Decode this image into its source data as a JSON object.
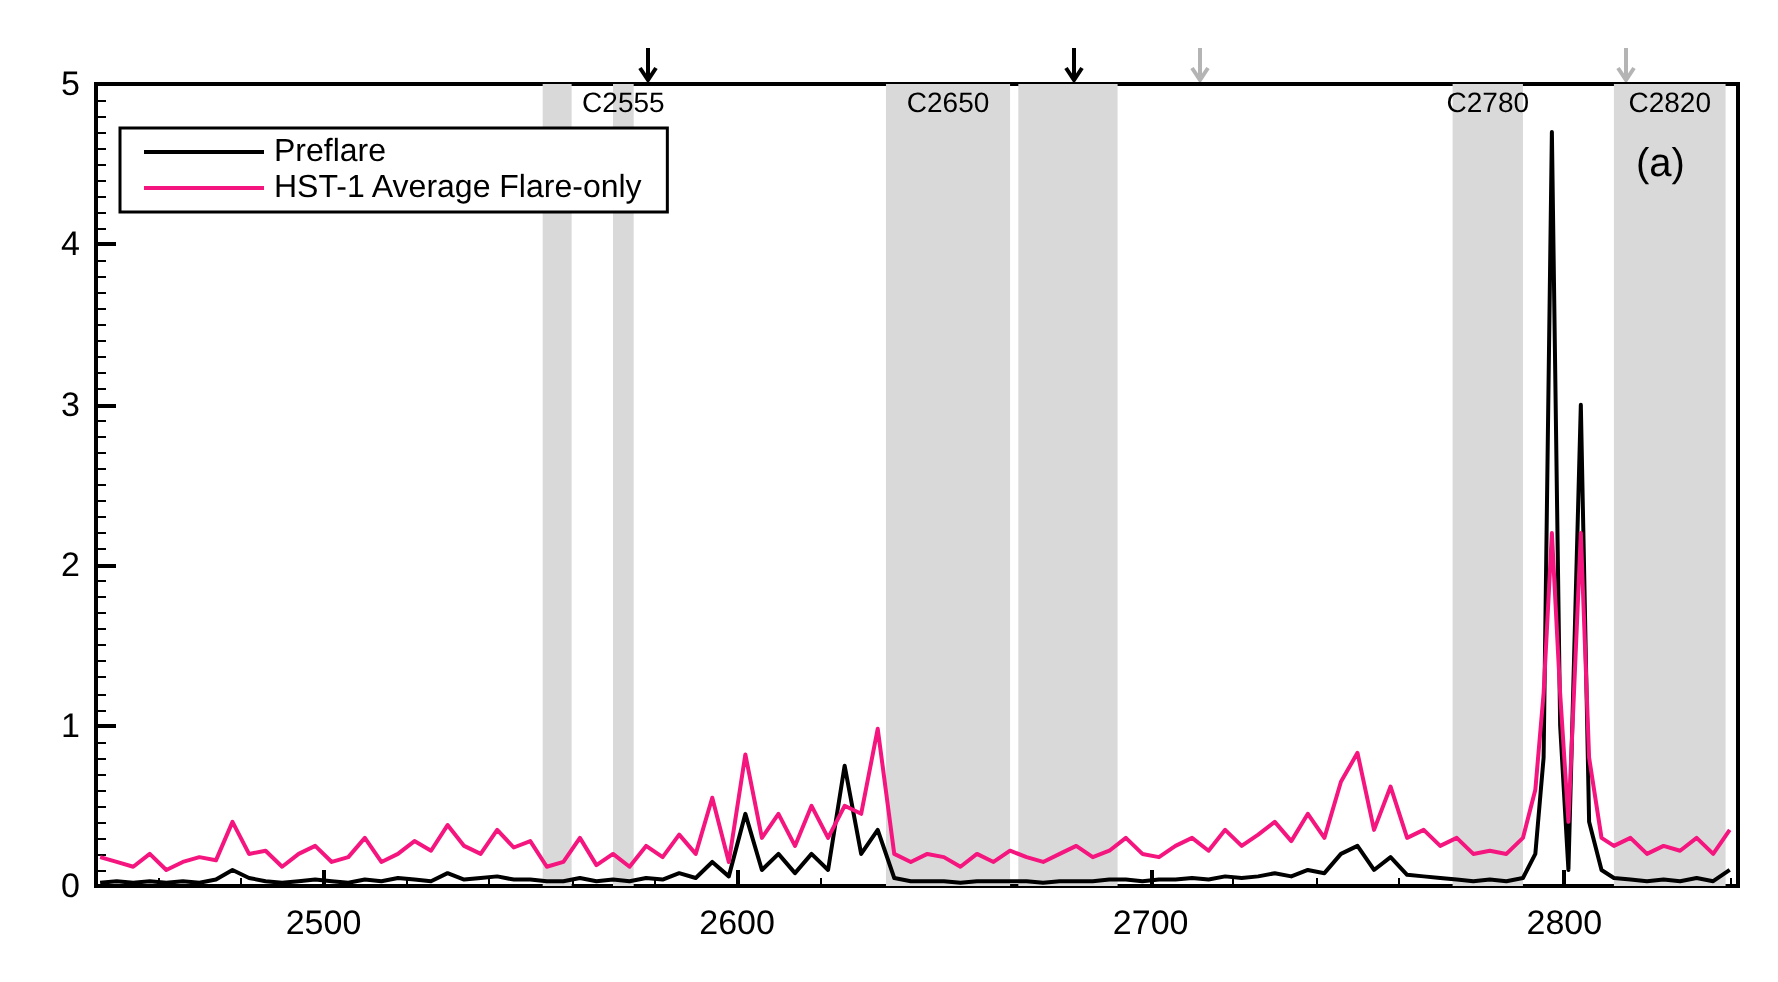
{
  "chart_data": {
    "type": "line",
    "x": [
      2446,
      2450,
      2454,
      2458,
      2462,
      2466,
      2470,
      2474,
      2478,
      2482,
      2486,
      2490,
      2494,
      2498,
      2502,
      2506,
      2510,
      2514,
      2518,
      2522,
      2526,
      2530,
      2534,
      2538,
      2542,
      2546,
      2550,
      2554,
      2558,
      2562,
      2566,
      2570,
      2574,
      2578,
      2582,
      2586,
      2590,
      2594,
      2598,
      2602,
      2606,
      2610,
      2614,
      2618,
      2622,
      2626,
      2630,
      2634,
      2638,
      2642,
      2646,
      2650,
      2654,
      2658,
      2662,
      2666,
      2670,
      2674,
      2678,
      2682,
      2686,
      2690,
      2694,
      2698,
      2702,
      2706,
      2710,
      2714,
      2718,
      2722,
      2726,
      2730,
      2734,
      2738,
      2742,
      2746,
      2750,
      2754,
      2758,
      2762,
      2766,
      2770,
      2774,
      2778,
      2782,
      2786,
      2790,
      2793,
      2795,
      2797,
      2799,
      2801,
      2804,
      2806,
      2809,
      2812,
      2816,
      2820,
      2824,
      2828,
      2832,
      2836,
      2840
    ],
    "series": [
      {
        "name": "Preflare",
        "color": "#000000",
        "values": [
          0.02,
          0.03,
          0.02,
          0.03,
          0.02,
          0.03,
          0.02,
          0.04,
          0.1,
          0.05,
          0.03,
          0.02,
          0.03,
          0.04,
          0.03,
          0.02,
          0.04,
          0.03,
          0.05,
          0.04,
          0.03,
          0.08,
          0.04,
          0.05,
          0.06,
          0.04,
          0.04,
          0.03,
          0.03,
          0.05,
          0.03,
          0.04,
          0.03,
          0.05,
          0.04,
          0.08,
          0.05,
          0.15,
          0.06,
          0.45,
          0.1,
          0.2,
          0.08,
          0.2,
          0.1,
          0.75,
          0.2,
          0.35,
          0.05,
          0.03,
          0.03,
          0.03,
          0.02,
          0.03,
          0.03,
          0.03,
          0.03,
          0.02,
          0.03,
          0.03,
          0.03,
          0.04,
          0.04,
          0.03,
          0.04,
          0.04,
          0.05,
          0.04,
          0.06,
          0.05,
          0.06,
          0.08,
          0.06,
          0.1,
          0.08,
          0.2,
          0.25,
          0.1,
          0.18,
          0.07,
          0.06,
          0.05,
          0.04,
          0.03,
          0.04,
          0.03,
          0.05,
          0.2,
          0.8,
          4.7,
          1.0,
          0.1,
          3.0,
          0.4,
          0.1,
          0.05,
          0.04,
          0.03,
          0.04,
          0.03,
          0.05,
          0.03,
          0.1
        ]
      },
      {
        "name": "HST-1 Average Flare-only",
        "color": "#f5157f",
        "values": [
          0.18,
          0.15,
          0.12,
          0.2,
          0.1,
          0.15,
          0.18,
          0.16,
          0.4,
          0.2,
          0.22,
          0.12,
          0.2,
          0.25,
          0.15,
          0.18,
          0.3,
          0.15,
          0.2,
          0.28,
          0.22,
          0.38,
          0.25,
          0.2,
          0.35,
          0.24,
          0.28,
          0.12,
          0.15,
          0.3,
          0.13,
          0.2,
          0.12,
          0.25,
          0.18,
          0.32,
          0.2,
          0.55,
          0.15,
          0.82,
          0.3,
          0.45,
          0.25,
          0.5,
          0.3,
          0.5,
          0.45,
          0.98,
          0.2,
          0.15,
          0.2,
          0.18,
          0.12,
          0.2,
          0.15,
          0.22,
          0.18,
          0.15,
          0.2,
          0.25,
          0.18,
          0.22,
          0.3,
          0.2,
          0.18,
          0.25,
          0.3,
          0.22,
          0.35,
          0.25,
          0.32,
          0.4,
          0.28,
          0.45,
          0.3,
          0.65,
          0.83,
          0.35,
          0.62,
          0.3,
          0.35,
          0.25,
          0.3,
          0.2,
          0.22,
          0.2,
          0.3,
          0.6,
          1.2,
          2.2,
          1.2,
          0.4,
          2.2,
          0.8,
          0.3,
          0.25,
          0.3,
          0.2,
          0.25,
          0.22,
          0.3,
          0.2,
          0.35
        ]
      }
    ],
    "xlim": [
      2445,
      2842
    ],
    "xticks": [
      2500,
      2600,
      2700,
      2800
    ],
    "ylim": [
      0,
      5
    ],
    "yticks": [
      0,
      1,
      2,
      3,
      4,
      5
    ],
    "grid": false,
    "legend": "top left",
    "line_style": "solid",
    "marker": "none",
    "bands": [
      {
        "axis": "x",
        "from": 2553,
        "to": 2560,
        "label": null,
        "color": "#d9d9d9"
      },
      {
        "axis": "x",
        "from": 2570,
        "to": 2575,
        "label": "C2555",
        "color": "#d9d9d9"
      },
      {
        "axis": "x",
        "from": 2636,
        "to": 2666,
        "label": "C2650",
        "color": "#d9d9d9"
      },
      {
        "axis": "x",
        "from": 2668,
        "to": 2692,
        "label": null,
        "color": "#d9d9d9"
      },
      {
        "axis": "x",
        "from": 2773,
        "to": 2790,
        "label": "C2780",
        "color": "#d9d9d9"
      },
      {
        "axis": "x",
        "from": 2812,
        "to": 2839,
        "label": "C2820",
        "color": "#d9d9d9"
      }
    ],
    "annotations": [
      "(a)"
    ]
  }
}
